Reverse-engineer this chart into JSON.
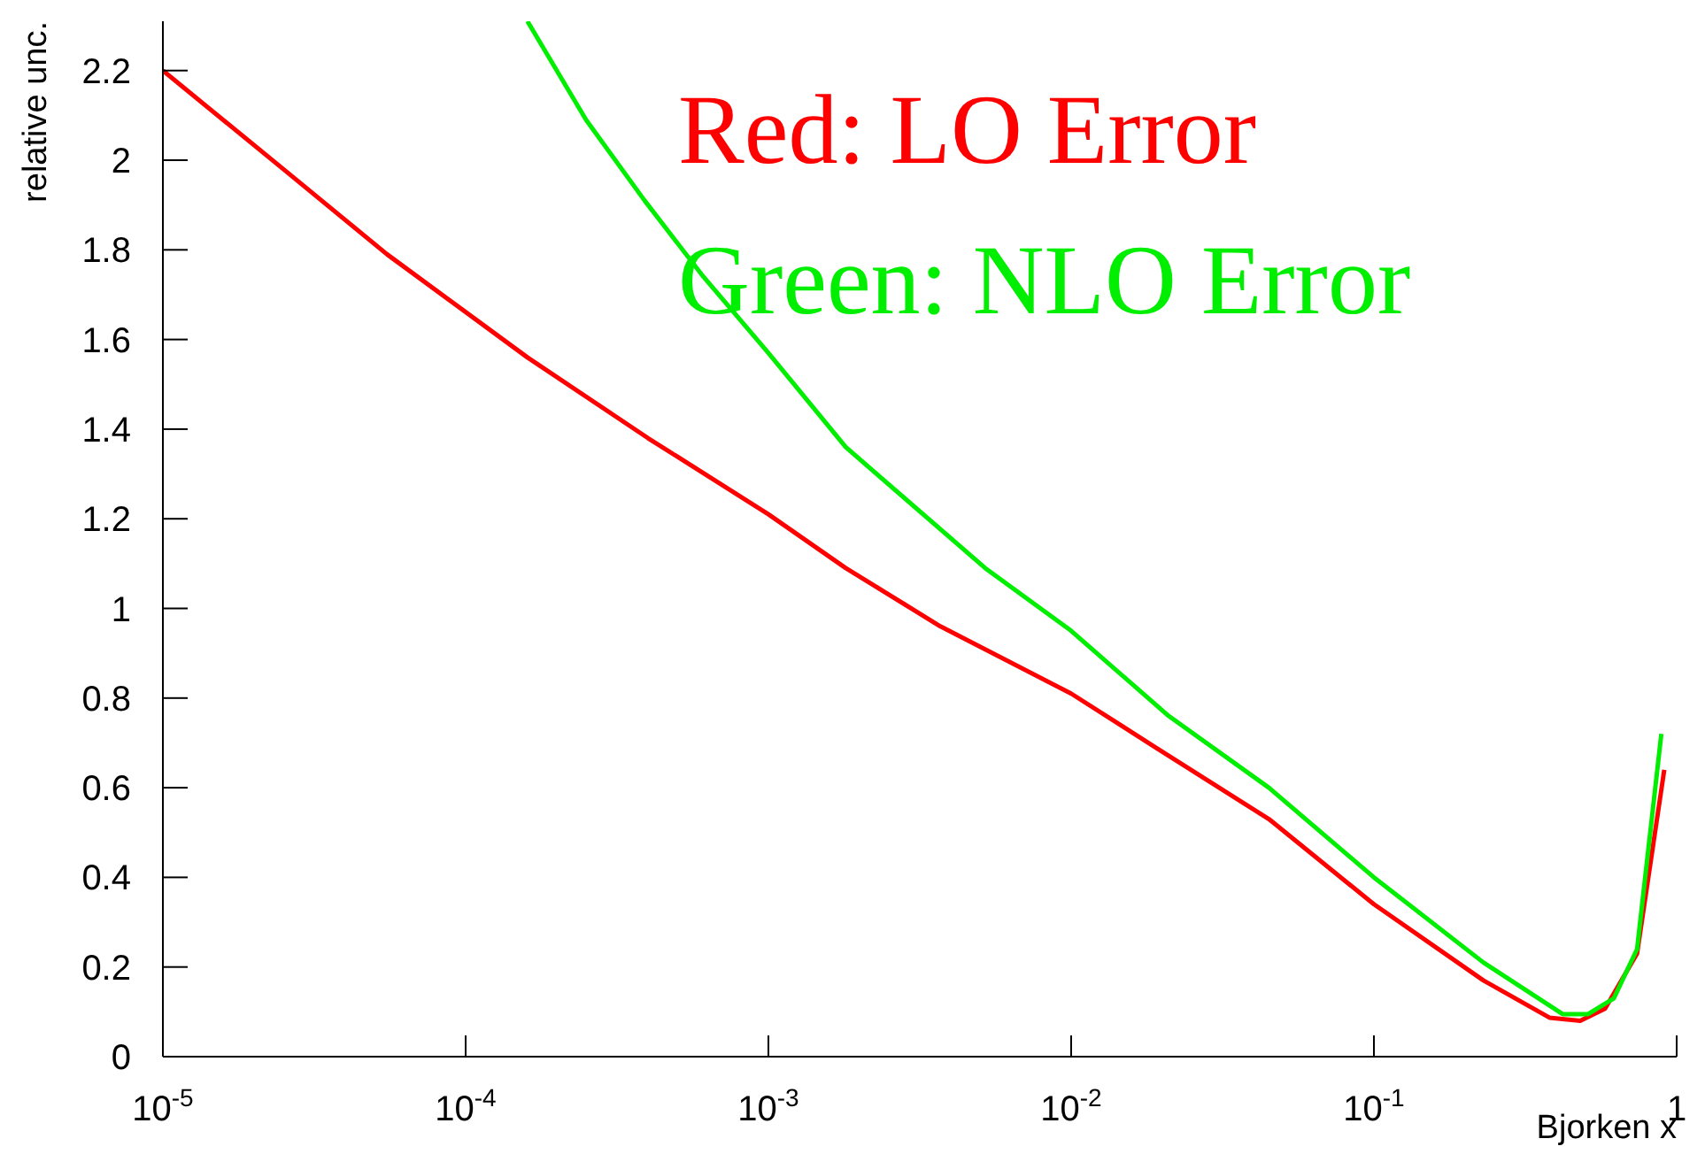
{
  "chart_data": {
    "type": "line",
    "xlabel": "Bjorken x",
    "ylabel": "relative unc.",
    "log": "x",
    "xlim": [
      1e-05,
      1
    ],
    "ylim": [
      0,
      2.31
    ],
    "xticks": [
      {
        "value": 1e-05,
        "label": "10$^{-5}$"
      },
      {
        "value": 0.0001,
        "label": "10$^{-4}$"
      },
      {
        "value": 0.001,
        "label": "10$^{-3}$"
      },
      {
        "value": 0.01,
        "label": "10$^{-2}$"
      },
      {
        "value": 0.1,
        "label": "10$^{-1}$"
      },
      1
    ],
    "yticks": [
      0,
      0.2,
      0.4,
      0.6,
      0.8,
      1,
      1.2,
      1.4,
      1.6,
      1.8,
      2,
      2.2
    ],
    "grid": false,
    "legend": false,
    "marker": "none",
    "line_style": "solid",
    "annotations": [
      "Red: LO Error",
      "Green: NLO Error"
    ],
    "series": [
      {
        "color": "#ff0000",
        "x": [
          1e-05,
          2.5e-05,
          5.5e-05,
          0.00016,
          0.0004,
          0.001,
          0.0018,
          0.0037,
          0.01,
          0.019,
          0.045,
          0.1,
          0.23,
          0.38,
          0.48,
          0.58,
          0.74,
          0.91
        ],
        "values": [
          2.2,
          1.98,
          1.79,
          1.56,
          1.38,
          1.21,
          1.09,
          0.96,
          0.81,
          0.69,
          0.53,
          0.34,
          0.17,
          0.087,
          0.08,
          0.107,
          0.23,
          0.64
        ]
      },
      {
        "color": "#00ee00",
        "x": [
          0.00016,
          0.00025,
          0.00039,
          0.00061,
          0.001,
          0.0018,
          0.0052,
          0.01,
          0.021,
          0.045,
          0.1,
          0.23,
          0.42,
          0.51,
          0.62,
          0.74,
          0.89
        ],
        "values": [
          2.31,
          2.09,
          1.91,
          1.74,
          1.57,
          1.36,
          1.09,
          0.95,
          0.76,
          0.6,
          0.4,
          0.21,
          0.095,
          0.095,
          0.13,
          0.24,
          0.72
        ]
      }
    ]
  }
}
